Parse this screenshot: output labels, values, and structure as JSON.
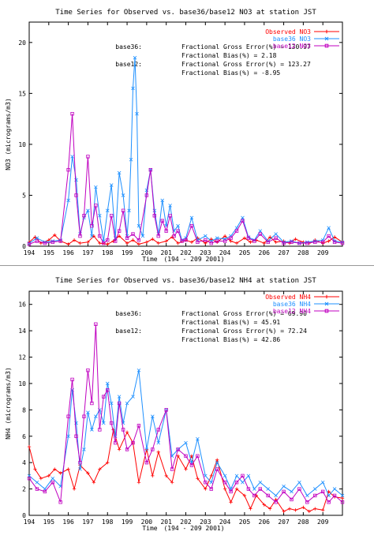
{
  "chart_data": [
    {
      "type": "line",
      "title": "Time Series for Observed vs. base36/base12 NO3 at station JST",
      "xlabel": "Time",
      "xlabel_range": "(194 - 209 2001)",
      "ylabel": "NO3   (micrograms/m3)",
      "xlim": [
        194,
        210
      ],
      "ylim": [
        0,
        22
      ],
      "xticks": [
        "194",
        "195",
        "196",
        "197",
        "198",
        "199",
        "200",
        "201",
        "202",
        "203",
        "204",
        "205",
        "206",
        "207",
        "208",
        "209"
      ],
      "yticks": [
        "0",
        "5",
        "10",
        "15",
        "20"
      ],
      "legend_position": "top-right",
      "stats": [
        {
          "label": "base36:",
          "lines": [
            "Fractional Gross Error(%) = 130.97",
            "Fractional Bias(%) = 2.18"
          ]
        },
        {
          "label": "base12:",
          "lines": [
            "Fractional Gross Error(%) = 123.27",
            "Fractional Bias(%) = -8.95"
          ]
        }
      ],
      "series": [
        {
          "name": "Observed NO3",
          "color": "#ff0000",
          "marker": "plus",
          "x": [
            194,
            194.3,
            194.6,
            195,
            195.3,
            195.6,
            196,
            196.3,
            196.6,
            197,
            197.3,
            197.6,
            198,
            198.3,
            198.6,
            199,
            199.3,
            199.6,
            200,
            200.3,
            200.6,
            201,
            201.3,
            201.6,
            202,
            202.3,
            202.6,
            203,
            203.3,
            203.6,
            204,
            204.3,
            204.6,
            205,
            205.3,
            205.6,
            206,
            206.3,
            206.6,
            207,
            207.3,
            207.6,
            208,
            208.3,
            208.6,
            209,
            209.3,
            209.6,
            210
          ],
          "values": [
            0.4,
            0.9,
            0.3,
            0.6,
            1.1,
            0.5,
            0.2,
            0.6,
            0.3,
            0.4,
            1.0,
            0.3,
            0.2,
            0.5,
            1.0,
            0.3,
            0.6,
            0.2,
            0.4,
            0.7,
            0.3,
            0.5,
            0.9,
            0.3,
            0.6,
            0.4,
            0.8,
            0.3,
            0.7,
            0.4,
            1.0,
            0.5,
            0.3,
            0.8,
            0.4,
            0.6,
            0.3,
            0.9,
            0.4,
            0.5,
            0.3,
            0.7,
            0.4,
            0.3,
            0.6,
            0.3,
            0.5,
            0.9,
            0.4
          ]
        },
        {
          "name": "base36 NO3",
          "color": "#1e90ff",
          "marker": "x",
          "x": [
            194,
            194.4,
            194.8,
            195.2,
            195.6,
            196,
            196.2,
            196.4,
            196.6,
            196.8,
            197,
            197.2,
            197.4,
            197.6,
            197.8,
            198,
            198.2,
            198.4,
            198.6,
            198.8,
            199,
            199.1,
            199.2,
            199.3,
            199.4,
            199.5,
            199.6,
            199.8,
            200,
            200.2,
            200.4,
            200.6,
            200.8,
            201,
            201.2,
            201.4,
            201.6,
            201.8,
            202,
            202.3,
            202.6,
            203,
            203.3,
            203.6,
            204,
            204.3,
            204.6,
            204.9,
            205.2,
            205.5,
            205.8,
            206.2,
            206.6,
            207,
            207.4,
            207.8,
            208.2,
            208.6,
            209,
            209.3,
            209.6,
            210
          ],
          "values": [
            0.3,
            0.8,
            0.4,
            0.5,
            0.6,
            4.5,
            8.8,
            6.5,
            1.2,
            2.8,
            3.5,
            1.0,
            5.8,
            3.0,
            0.5,
            3.5,
            6.0,
            0.8,
            7.2,
            5.0,
            1.0,
            3.5,
            8.5,
            15.5,
            18.5,
            13.0,
            2.0,
            1.0,
            5.5,
            7.5,
            3.5,
            1.2,
            4.5,
            2.0,
            4.0,
            1.5,
            2.0,
            0.6,
            0.8,
            2.8,
            0.6,
            1.0,
            0.5,
            0.8,
            0.7,
            1.0,
            1.8,
            2.8,
            0.9,
            0.6,
            1.5,
            0.5,
            1.2,
            0.4,
            0.5,
            0.3,
            0.4,
            0.5,
            0.6,
            1.8,
            0.5,
            0.4
          ]
        },
        {
          "name": "base12 NO3",
          "color": "#c000c0",
          "marker": "square",
          "x": [
            194,
            194.4,
            194.8,
            195.2,
            195.6,
            196,
            196.2,
            196.4,
            196.6,
            196.8,
            197,
            197.2,
            197.4,
            197.6,
            197.8,
            198,
            198.2,
            198.4,
            198.6,
            198.8,
            199,
            199.3,
            199.6,
            200,
            200.2,
            200.4,
            200.6,
            200.8,
            201,
            201.2,
            201.4,
            201.6,
            201.8,
            202,
            202.3,
            202.6,
            203,
            203.3,
            203.6,
            204,
            204.3,
            204.6,
            204.9,
            205.2,
            205.5,
            205.8,
            206.2,
            206.6,
            207,
            207.4,
            207.8,
            208.2,
            208.6,
            209,
            209.3,
            209.6,
            210
          ],
          "values": [
            0.2,
            0.5,
            0.3,
            0.4,
            0.5,
            7.5,
            13.0,
            5.0,
            1.0,
            3.0,
            8.8,
            2.0,
            4.0,
            1.0,
            0.3,
            0.6,
            3.0,
            0.5,
            1.5,
            3.5,
            0.8,
            1.2,
            0.6,
            5.0,
            7.5,
            3.0,
            1.0,
            2.5,
            1.5,
            3.0,
            1.0,
            1.5,
            0.5,
            0.6,
            2.0,
            0.4,
            0.6,
            0.3,
            0.5,
            0.5,
            0.8,
            1.5,
            2.5,
            0.8,
            0.5,
            1.2,
            0.4,
            0.8,
            0.3,
            0.4,
            0.3,
            0.3,
            0.4,
            0.4,
            1.0,
            0.4,
            0.3
          ]
        }
      ]
    },
    {
      "type": "line",
      "title": "Time Series for Observed vs. base36/base12 NH4 at station JST",
      "xlabel": "Time",
      "xlabel_range": "(194 - 209 2001)",
      "ylabel": "NH4   (micrograms/m3)",
      "xlim": [
        194,
        210
      ],
      "ylim": [
        0,
        17
      ],
      "xticks": [
        "194",
        "195",
        "196",
        "197",
        "198",
        "199",
        "200",
        "201",
        "202",
        "203",
        "204",
        "205",
        "206",
        "207",
        "208",
        "209"
      ],
      "yticks": [
        "0",
        "2",
        "4",
        "6",
        "8",
        "10",
        "12",
        "14",
        "16"
      ],
      "legend_position": "top-right",
      "stats": [
        {
          "label": "base36:",
          "lines": [
            "Fractional Gross Error(%) = 69.90",
            "Fractional Bias(%) = 45.91"
          ]
        },
        {
          "label": "base12:",
          "lines": [
            "Fractional Gross Error(%) = 72.24",
            "Fractional Bias(%) = 42.86"
          ]
        }
      ],
      "series": [
        {
          "name": "Observed NH4",
          "color": "#ff0000",
          "marker": "plus",
          "x": [
            194,
            194.3,
            194.6,
            195,
            195.3,
            195.6,
            196,
            196.3,
            196.6,
            197,
            197.3,
            197.6,
            198,
            198.3,
            198.6,
            199,
            199.3,
            199.6,
            200,
            200.3,
            200.6,
            201,
            201.3,
            201.6,
            202,
            202.3,
            202.6,
            203,
            203.3,
            203.6,
            204,
            204.3,
            204.6,
            205,
            205.3,
            205.6,
            206,
            206.3,
            206.6,
            207,
            207.3,
            207.6,
            208,
            208.3,
            208.6,
            209,
            209.3,
            209.6,
            210
          ],
          "values": [
            5.2,
            3.5,
            2.8,
            3.0,
            3.5,
            3.2,
            3.5,
            2.0,
            3.8,
            3.2,
            2.5,
            3.5,
            4.0,
            6.5,
            5.0,
            6.3,
            5.5,
            2.5,
            5.0,
            3.0,
            4.8,
            3.0,
            2.5,
            4.5,
            3.5,
            4.5,
            2.8,
            2.0,
            3.0,
            4.2,
            2.0,
            1.0,
            2.0,
            1.5,
            0.5,
            1.5,
            0.8,
            0.5,
            1.2,
            0.3,
            0.5,
            0.4,
            0.6,
            0.3,
            0.5,
            0.4,
            1.8,
            1.4,
            1.3
          ]
        },
        {
          "name": "base36 NH4",
          "color": "#1e90ff",
          "marker": "x",
          "x": [
            194,
            194.4,
            194.8,
            195.2,
            195.6,
            196,
            196.2,
            196.4,
            196.6,
            196.8,
            197,
            197.2,
            197.4,
            197.6,
            197.8,
            198,
            198.2,
            198.4,
            198.6,
            198.8,
            199,
            199.3,
            199.6,
            200,
            200.3,
            200.6,
            201,
            201.3,
            201.6,
            202,
            202.3,
            202.6,
            203,
            203.3,
            203.6,
            204,
            204.3,
            204.6,
            204.9,
            205.2,
            205.5,
            205.8,
            206.2,
            206.6,
            207,
            207.4,
            207.8,
            208.2,
            208.6,
            209,
            209.3,
            209.6,
            210
          ],
          "values": [
            3.0,
            2.5,
            2.0,
            2.8,
            2.2,
            6.0,
            9.5,
            7.0,
            3.5,
            5.0,
            7.8,
            6.5,
            7.5,
            8.0,
            7.0,
            10.0,
            8.5,
            6.0,
            9.0,
            7.0,
            8.5,
            9.0,
            11.0,
            5.0,
            7.5,
            5.5,
            8.0,
            4.5,
            5.0,
            5.5,
            4.0,
            5.8,
            3.0,
            2.5,
            4.0,
            3.0,
            2.0,
            3.0,
            2.5,
            3.0,
            2.0,
            2.5,
            2.0,
            1.5,
            2.2,
            1.8,
            2.5,
            1.5,
            2.0,
            2.5,
            1.5,
            2.0,
            1.5
          ]
        },
        {
          "name": "base12 NH4",
          "color": "#c000c0",
          "marker": "square",
          "x": [
            194,
            194.4,
            194.8,
            195.2,
            195.6,
            196,
            196.2,
            196.4,
            196.6,
            196.8,
            197,
            197.2,
            197.4,
            197.6,
            197.8,
            198,
            198.2,
            198.4,
            198.6,
            198.8,
            199,
            199.3,
            199.6,
            200,
            200.3,
            200.6,
            201,
            201.3,
            201.6,
            202,
            202.3,
            202.6,
            203,
            203.3,
            203.6,
            204,
            204.3,
            204.6,
            204.9,
            205.2,
            205.5,
            205.8,
            206.2,
            206.6,
            207,
            207.4,
            207.8,
            208.2,
            208.6,
            209,
            209.3,
            209.6,
            210
          ],
          "values": [
            2.8,
            2.0,
            1.8,
            2.5,
            1.0,
            7.5,
            10.3,
            6.0,
            4.0,
            7.5,
            11.0,
            8.5,
            14.5,
            6.5,
            9.0,
            9.5,
            7.0,
            5.5,
            8.5,
            6.5,
            5.0,
            5.5,
            6.8,
            4.0,
            5.0,
            6.5,
            8.0,
            3.5,
            5.0,
            4.5,
            3.8,
            4.5,
            2.5,
            2.0,
            3.5,
            2.5,
            1.8,
            2.5,
            3.0,
            2.0,
            1.5,
            2.0,
            1.5,
            1.0,
            1.8,
            1.2,
            2.0,
            1.0,
            1.5,
            1.8,
            1.0,
            1.5,
            1.0
          ]
        }
      ]
    }
  ]
}
